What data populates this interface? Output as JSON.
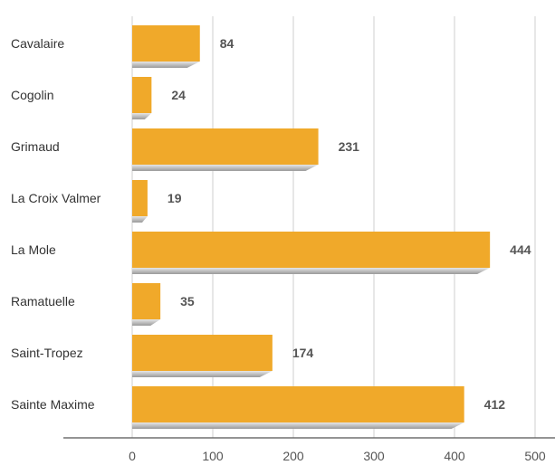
{
  "chart_data": {
    "type": "bar",
    "orientation": "horizontal",
    "title": "",
    "xlabel": "",
    "ylabel": "",
    "categories": [
      "Cavalaire",
      "Cogolin",
      "Grimaud",
      "La Croix Valmer",
      "La Mole",
      "Ramatuelle",
      "Saint-Tropez",
      "Sainte Maxime"
    ],
    "values": [
      84,
      24,
      231,
      19,
      444,
      35,
      174,
      412
    ],
    "xlim": [
      0,
      500
    ],
    "xticks": [
      0,
      100,
      200,
      300,
      400,
      500
    ],
    "grid": "vertical",
    "bar_color": "#f0a92a",
    "shadow_color": "#b8b8b8"
  }
}
